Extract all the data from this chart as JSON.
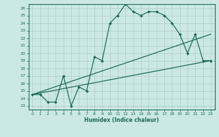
{
  "title": "",
  "xlabel": "Humidex (Indice chaleur)",
  "bg_color": "#cce8e4",
  "grid_color": "#aaccc8",
  "line_color": "#1a6b5a",
  "xlim": [
    -0.5,
    23.5
  ],
  "ylim": [
    12.5,
    26.5
  ],
  "xticks": [
    0,
    1,
    2,
    3,
    4,
    5,
    6,
    7,
    8,
    9,
    10,
    11,
    12,
    13,
    14,
    15,
    16,
    17,
    18,
    19,
    20,
    21,
    22,
    23
  ],
  "yticks": [
    13,
    14,
    15,
    16,
    17,
    18,
    19,
    20,
    21,
    22,
    23,
    24,
    25,
    26
  ],
  "line1_x": [
    0,
    1,
    2,
    3,
    4,
    5,
    6,
    7,
    8,
    9,
    10,
    11,
    12,
    13,
    14,
    15,
    16,
    17,
    18,
    19,
    20,
    21,
    22,
    23
  ],
  "line1_y": [
    14.5,
    14.5,
    13.5,
    13.5,
    17.0,
    13.0,
    15.5,
    15.0,
    19.5,
    19.0,
    24.0,
    25.0,
    26.5,
    25.5,
    25.0,
    25.5,
    25.5,
    25.0,
    24.0,
    22.5,
    20.0,
    22.5,
    19.0,
    19.0
  ],
  "line2_x": [
    0,
    23
  ],
  "line2_y": [
    14.5,
    19.0
  ],
  "line3_x": [
    0,
    23
  ],
  "line3_y": [
    14.5,
    22.5
  ]
}
